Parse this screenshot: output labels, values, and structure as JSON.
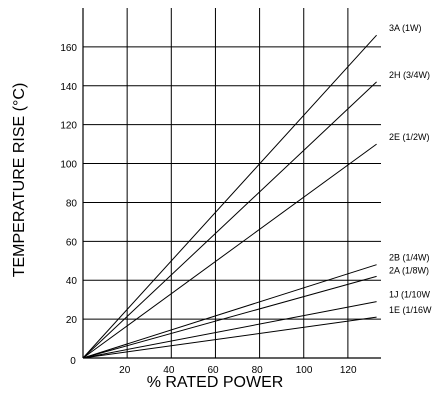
{
  "chart_data": {
    "type": "line",
    "title": "",
    "xlabel": "% RATED POWER",
    "ylabel": "TEMPERATURE RISE (°C)",
    "xlim": [
      0,
      135
    ],
    "ylim": [
      0,
      180
    ],
    "x_ticks": [
      0,
      20,
      40,
      60,
      80,
      100,
      120
    ],
    "y_ticks": [
      0,
      20,
      40,
      60,
      80,
      100,
      120,
      140,
      160
    ],
    "grid": true,
    "series": [
      {
        "name": "3A (1W)",
        "x": [
          0,
          133
        ],
        "y": [
          0,
          166
        ]
      },
      {
        "name": "2H (3/4W)",
        "x": [
          0,
          133
        ],
        "y": [
          0,
          142
        ]
      },
      {
        "name": "2E (1/2W)",
        "x": [
          0,
          133
        ],
        "y": [
          0,
          110
        ]
      },
      {
        "name": "2B (1/4W)",
        "x": [
          0,
          133
        ],
        "y": [
          0,
          48
        ]
      },
      {
        "name": "2A (1/8W)",
        "x": [
          0,
          133
        ],
        "y": [
          0,
          42
        ]
      },
      {
        "name": "1J (1/10W",
        "x": [
          0,
          133
        ],
        "y": [
          0,
          29
        ]
      },
      {
        "name": "1E (1/16W",
        "x": [
          0,
          133
        ],
        "y": [
          0,
          21
        ]
      }
    ]
  }
}
